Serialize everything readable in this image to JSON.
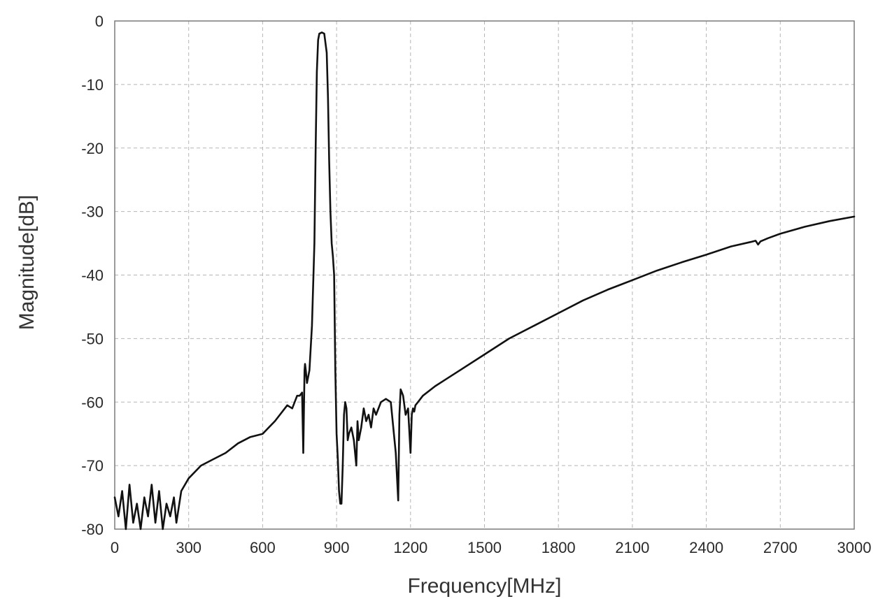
{
  "chart_data": {
    "type": "line",
    "title": "",
    "xlabel": "Frequency[MHz]",
    "ylabel": "Magnitude[dB]",
    "xlim": [
      0,
      3000
    ],
    "ylim": [
      -80,
      0
    ],
    "xticks": [
      0,
      300,
      600,
      900,
      1200,
      1500,
      1800,
      2100,
      2400,
      2700,
      3000
    ],
    "yticks": [
      0,
      -10,
      -20,
      -30,
      -40,
      -50,
      -60,
      -70,
      -80
    ],
    "grid": true,
    "legend": "none",
    "series": [
      {
        "line_color": "#111111",
        "x": [
          0,
          15,
          30,
          45,
          60,
          75,
          90,
          105,
          120,
          135,
          150,
          165,
          180,
          195,
          210,
          225,
          240,
          250,
          270,
          300,
          350,
          400,
          450,
          500,
          550,
          600,
          650,
          700,
          720,
          740,
          750,
          760,
          765,
          768,
          770,
          772,
          775,
          780,
          790,
          800,
          810,
          815,
          820,
          825,
          830,
          840,
          850,
          860,
          865,
          870,
          875,
          880,
          885,
          890,
          895,
          900,
          905,
          910,
          915,
          920,
          925,
          930,
          935,
          940,
          945,
          950,
          960,
          970,
          980,
          985,
          990,
          1000,
          1010,
          1020,
          1030,
          1040,
          1050,
          1060,
          1080,
          1100,
          1120,
          1140,
          1150,
          1155,
          1160,
          1165,
          1170,
          1180,
          1190,
          1200,
          1205,
          1210,
          1215,
          1220,
          1230,
          1250,
          1300,
          1400,
          1500,
          1600,
          1700,
          1800,
          1900,
          2000,
          2100,
          2200,
          2300,
          2400,
          2500,
          2580,
          2600,
          2610,
          2620,
          2650,
          2700,
          2800,
          2900,
          3000
        ],
        "y": [
          -75,
          -78,
          -74,
          -80,
          -73,
          -79,
          -76,
          -80,
          -75,
          -78,
          -73,
          -79,
          -74,
          -80,
          -76,
          -78,
          -75,
          -79,
          -74,
          -72,
          -70,
          -69,
          -68,
          -66.5,
          -65.5,
          -65,
          -63,
          -60.5,
          -61,
          -59,
          -59,
          -58.5,
          -68,
          -60,
          -55,
          -54,
          -55,
          -57,
          -55,
          -48,
          -35,
          -20,
          -8,
          -3,
          -2,
          -1.8,
          -2,
          -5,
          -12,
          -22,
          -30,
          -35,
          -37,
          -40,
          -55,
          -65,
          -69,
          -74,
          -76,
          -76,
          -70,
          -62,
          -60,
          -61,
          -66,
          -65,
          -64,
          -66,
          -70,
          -63,
          -66,
          -64,
          -61,
          -63,
          -62,
          -64,
          -61,
          -62,
          -60,
          -59.5,
          -60,
          -68,
          -75.5,
          -62,
          -58,
          -58.5,
          -59,
          -62,
          -61,
          -68,
          -62,
          -61,
          -61.5,
          -60.5,
          -60,
          -59,
          -57.5,
          -55,
          -52.5,
          -50,
          -48,
          -46,
          -44,
          -42.3,
          -40.8,
          -39.3,
          -38,
          -36.8,
          -35.5,
          -34.8,
          -34.6,
          -35.2,
          -34.7,
          -34.2,
          -33.5,
          -32.4,
          -31.5,
          -30.8
        ]
      }
    ]
  }
}
